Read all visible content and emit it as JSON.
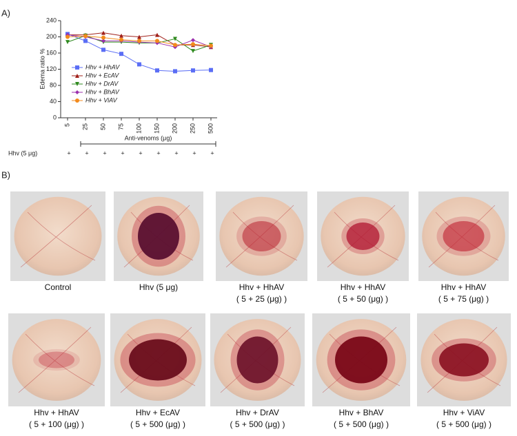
{
  "panel_a": {
    "label": "A)"
  },
  "chart_data": {
    "type": "line",
    "y_label": "Edema ratio %",
    "x_label": "Anti-venoms (μg)",
    "categories": [
      "5",
      "25",
      "50",
      "75",
      "100",
      "150",
      "200",
      "250",
      "500"
    ],
    "ylim": [
      0,
      240
    ],
    "yticks": [
      0,
      40,
      80,
      120,
      160,
      200,
      240
    ],
    "legend_position": "center left",
    "series": [
      {
        "name": "Hhv + HhAV",
        "color": "#5b6ef5",
        "marker": "square",
        "values": [
          207,
          190,
          168,
          158,
          132,
          117,
          115,
          117,
          118
        ]
      },
      {
        "name": "Hhv + EcAV",
        "color": "#a0201a",
        "marker": "triangle-up",
        "values": [
          205,
          205,
          210,
          203,
          200,
          205,
          180,
          180,
          175
        ]
      },
      {
        "name": "Hhv + DrAV",
        "color": "#2f8a1f",
        "marker": "triangle-down",
        "values": [
          187,
          203,
          187,
          187,
          185,
          185,
          195,
          165,
          180
        ]
      },
      {
        "name": "Hhv + BhAV",
        "color": "#9b2fae",
        "marker": "diamond",
        "values": [
          205,
          200,
          190,
          190,
          187,
          185,
          175,
          192,
          175
        ]
      },
      {
        "name": "Hhv + ViAV",
        "color": "#f28a1c",
        "marker": "circle",
        "values": [
          200,
          202,
          198,
          193,
          190,
          190,
          180,
          182,
          178
        ]
      }
    ]
  },
  "treatment_row": {
    "label": "Hhv (5 μg)",
    "marks": [
      "+",
      "+",
      "+",
      "+",
      "+",
      "+",
      "+",
      "+",
      "+"
    ]
  },
  "panel_b": {
    "label": "B)",
    "images": [
      {
        "caption": [
          "Control"
        ]
      },
      {
        "caption": [
          "Hhv (5 μg)"
        ]
      },
      {
        "caption": [
          "Hhv + HhAV",
          "( 5 + 25 (μg) )"
        ]
      },
      {
        "caption": [
          "Hhv + HhAV",
          "( 5 + 50 (μg) )"
        ]
      },
      {
        "caption": [
          "Hhv + HhAV",
          "( 5 + 75 (μg) )"
        ]
      },
      {
        "caption": [
          "Hhv + HhAV",
          "( 5 + 100 (μg) )"
        ]
      },
      {
        "caption": [
          "Hhv + EcAV",
          "( 5 + 500 (μg) )"
        ]
      },
      {
        "caption": [
          "Hhv + DrAV",
          "( 5 + 500 (μg) )"
        ]
      },
      {
        "caption": [
          "Hhv + BhAV",
          "( 5 + 500 (μg) )"
        ]
      },
      {
        "caption": [
          "Hhv + ViAV",
          "( 5 + 500 (μg) )"
        ]
      }
    ]
  }
}
